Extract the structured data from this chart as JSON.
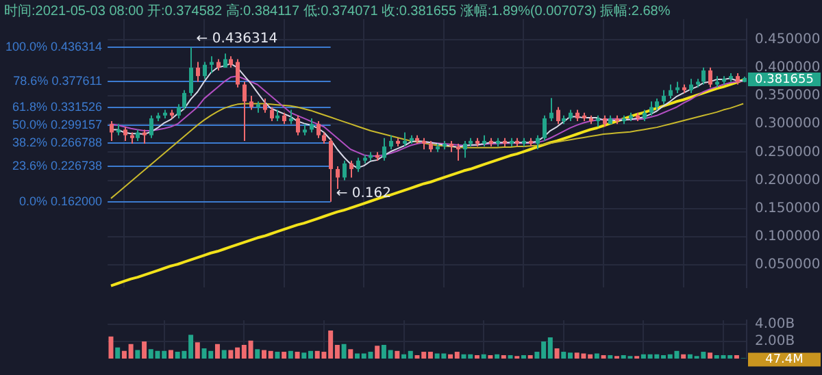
{
  "chart_data": [
    {
      "type": "candlestick",
      "title": "时间:2021-05-03 08:00 开:0.374582 高:0.384117 低:0.374071 收:0.381655 涨幅:1.89%(0.007073) 振幅:2.68%",
      "categories": [
        null,
        null,
        null,
        null,
        null,
        null,
        null,
        null,
        null,
        null,
        null,
        null,
        null,
        null,
        null,
        null,
        null,
        null,
        null,
        null,
        null,
        null,
        null,
        null,
        null,
        null,
        null,
        null,
        null,
        null,
        null,
        null,
        null,
        null,
        null,
        null,
        null,
        null,
        null,
        null,
        null,
        null,
        null,
        null,
        null,
        null,
        null,
        null,
        null,
        null,
        null,
        null,
        null,
        null,
        null,
        null,
        null,
        null,
        null,
        null,
        null,
        null,
        null,
        null,
        null,
        null,
        null,
        null,
        null,
        null,
        null,
        null,
        null,
        null,
        null,
        null,
        null,
        null,
        null,
        null,
        null,
        null,
        null,
        null,
        null,
        null,
        null,
        null,
        null,
        null,
        null,
        null,
        null,
        null,
        null,
        null
      ],
      "ohlc": [
        [
          0.3,
          0.305,
          0.27,
          0.285
        ],
        [
          0.285,
          0.3,
          0.28,
          0.29
        ],
        [
          0.29,
          0.295,
          0.27,
          0.28
        ],
        [
          0.28,
          0.285,
          0.265,
          0.275
        ],
        [
          0.275,
          0.29,
          0.27,
          0.285
        ],
        [
          0.285,
          0.29,
          0.265,
          0.28
        ],
        [
          0.28,
          0.315,
          0.275,
          0.31
        ],
        [
          0.31,
          0.32,
          0.305,
          0.315
        ],
        [
          0.315,
          0.325,
          0.31,
          0.32
        ],
        [
          0.32,
          0.325,
          0.31,
          0.315
        ],
        [
          0.315,
          0.335,
          0.31,
          0.33
        ],
        [
          0.33,
          0.36,
          0.325,
          0.355
        ],
        [
          0.355,
          0.436314,
          0.35,
          0.4
        ],
        [
          0.4,
          0.41,
          0.375,
          0.385
        ],
        [
          0.385,
          0.41,
          0.38,
          0.405
        ],
        [
          0.405,
          0.42,
          0.39,
          0.41
        ],
        [
          0.41,
          0.415,
          0.395,
          0.4
        ],
        [
          0.4,
          0.425,
          0.4,
          0.415
        ],
        [
          0.415,
          0.42,
          0.4,
          0.405
        ],
        [
          0.41,
          0.415,
          0.365,
          0.37
        ],
        [
          0.37,
          0.375,
          0.27,
          0.34
        ],
        [
          0.34,
          0.35,
          0.325,
          0.33
        ],
        [
          0.33,
          0.34,
          0.32,
          0.335
        ],
        [
          0.335,
          0.345,
          0.32,
          0.325
        ],
        [
          0.325,
          0.33,
          0.305,
          0.31
        ],
        [
          0.31,
          0.325,
          0.305,
          0.315
        ],
        [
          0.315,
          0.32,
          0.3,
          0.305
        ],
        [
          0.305,
          0.325,
          0.3,
          0.31
        ],
        [
          0.31,
          0.315,
          0.28,
          0.285
        ],
        [
          0.285,
          0.3,
          0.28,
          0.29
        ],
        [
          0.29,
          0.31,
          0.285,
          0.3
        ],
        [
          0.3,
          0.305,
          0.275,
          0.28
        ],
        [
          0.28,
          0.285,
          0.265,
          0.27
        ],
        [
          0.27,
          0.275,
          0.162,
          0.22
        ],
        [
          0.22,
          0.225,
          0.185,
          0.205
        ],
        [
          0.205,
          0.235,
          0.2,
          0.23
        ],
        [
          0.23,
          0.235,
          0.205,
          0.22
        ],
        [
          0.22,
          0.24,
          0.215,
          0.235
        ],
        [
          0.235,
          0.245,
          0.23,
          0.24
        ],
        [
          0.24,
          0.25,
          0.235,
          0.245
        ],
        [
          0.245,
          0.25,
          0.235,
          0.24
        ],
        [
          0.24,
          0.275,
          0.235,
          0.26
        ],
        [
          0.26,
          0.28,
          0.255,
          0.27
        ],
        [
          0.27,
          0.275,
          0.26,
          0.265
        ],
        [
          0.265,
          0.285,
          0.26,
          0.27
        ],
        [
          0.27,
          0.28,
          0.265,
          0.275
        ],
        [
          0.275,
          0.28,
          0.265,
          0.27
        ],
        [
          0.27,
          0.275,
          0.255,
          0.265
        ],
        [
          0.265,
          0.27,
          0.25,
          0.255
        ],
        [
          0.255,
          0.265,
          0.25,
          0.26
        ],
        [
          0.26,
          0.27,
          0.255,
          0.265
        ],
        [
          0.265,
          0.27,
          0.25,
          0.26
        ],
        [
          0.26,
          0.265,
          0.235,
          0.255
        ],
        [
          0.255,
          0.27,
          0.24,
          0.265
        ],
        [
          0.265,
          0.275,
          0.26,
          0.27
        ],
        [
          0.27,
          0.275,
          0.26,
          0.265
        ],
        [
          0.265,
          0.28,
          0.26,
          0.27
        ],
        [
          0.27,
          0.275,
          0.26,
          0.265
        ],
        [
          0.265,
          0.275,
          0.26,
          0.27
        ],
        [
          0.27,
          0.275,
          0.26,
          0.265
        ],
        [
          0.265,
          0.275,
          0.26,
          0.27
        ],
        [
          0.27,
          0.275,
          0.26,
          0.265
        ],
        [
          0.265,
          0.275,
          0.26,
          0.27
        ],
        [
          0.27,
          0.275,
          0.26,
          0.265
        ],
        [
          0.265,
          0.28,
          0.255,
          0.275
        ],
        [
          0.275,
          0.315,
          0.27,
          0.31
        ],
        [
          0.31,
          0.346,
          0.305,
          0.32
        ],
        [
          0.325,
          0.33,
          0.3,
          0.305
        ],
        [
          0.305,
          0.315,
          0.3,
          0.31
        ],
        [
          0.31,
          0.325,
          0.305,
          0.32
        ],
        [
          0.32,
          0.325,
          0.305,
          0.31
        ],
        [
          0.315,
          0.32,
          0.305,
          0.31
        ],
        [
          0.31,
          0.315,
          0.3,
          0.305
        ],
        [
          0.305,
          0.315,
          0.295,
          0.31
        ],
        [
          0.31,
          0.315,
          0.295,
          0.3
        ],
        [
          0.3,
          0.315,
          0.3,
          0.31
        ],
        [
          0.31,
          0.315,
          0.3,
          0.305
        ],
        [
          0.305,
          0.315,
          0.3,
          0.31
        ],
        [
          0.31,
          0.32,
          0.305,
          0.315
        ],
        [
          0.315,
          0.32,
          0.305,
          0.31
        ],
        [
          0.31,
          0.325,
          0.305,
          0.32
        ],
        [
          0.32,
          0.34,
          0.315,
          0.33
        ],
        [
          0.33,
          0.345,
          0.325,
          0.34
        ],
        [
          0.34,
          0.36,
          0.335,
          0.35
        ],
        [
          0.35,
          0.37,
          0.345,
          0.36
        ],
        [
          0.36,
          0.375,
          0.355,
          0.365
        ],
        [
          0.365,
          0.37,
          0.355,
          0.36
        ],
        [
          0.36,
          0.38,
          0.355,
          0.37
        ],
        [
          0.37,
          0.38,
          0.365,
          0.375
        ],
        [
          0.375,
          0.4,
          0.37,
          0.395
        ],
        [
          0.395,
          0.4,
          0.365,
          0.37
        ],
        [
          0.37,
          0.385,
          0.365,
          0.375
        ],
        [
          0.375,
          0.385,
          0.37,
          0.38
        ],
        [
          0.38,
          0.39,
          0.375,
          0.385
        ],
        [
          0.385,
          0.39,
          0.37,
          0.375
        ],
        [
          0.374582,
          0.384117,
          0.374071,
          0.381655
        ]
      ],
      "colors": [
        "#f06b6f",
        "#22a68b",
        "#f06b6f",
        "#f06b6f",
        "#22a68b",
        "#f06b6f",
        "#22a68b",
        "#22a68b",
        "#22a68b",
        "#f06b6f",
        "#22a68b",
        "#22a68b",
        "#22a68b",
        "#f06b6f",
        "#22a68b",
        "#22a68b",
        "#f06b6f",
        "#22a68b",
        "#f06b6f",
        "#f06b6f",
        "#f06b6f",
        "#f06b6f",
        "#22a68b",
        "#f06b6f",
        "#f06b6f",
        "#22a68b",
        "#f06b6f",
        "#22a68b",
        "#f06b6f",
        "#22a68b",
        "#22a68b",
        "#f06b6f",
        "#f06b6f",
        "#f06b6f",
        "#f06b6f",
        "#22a68b",
        "#f06b6f",
        "#22a68b",
        "#22a68b",
        "#22a68b",
        "#f06b6f",
        "#22a68b",
        "#22a68b",
        "#f06b6f",
        "#22a68b",
        "#22a68b",
        "#f06b6f",
        "#f06b6f",
        "#f06b6f",
        "#22a68b",
        "#22a68b",
        "#f06b6f",
        "#f06b6f",
        "#22a68b",
        "#22a68b",
        "#f06b6f",
        "#22a68b",
        "#f06b6f",
        "#22a68b",
        "#f06b6f",
        "#22a68b",
        "#f06b6f",
        "#22a68b",
        "#f06b6f",
        "#22a68b",
        "#22a68b",
        "#22a68b",
        "#f06b6f",
        "#22a68b",
        "#22a68b",
        "#f06b6f",
        "#f06b6f",
        "#f06b6f",
        "#22a68b",
        "#f06b6f",
        "#22a68b",
        "#f06b6f",
        "#22a68b",
        "#22a68b",
        "#f06b6f",
        "#22a68b",
        "#22a68b",
        "#22a68b",
        "#22a68b",
        "#22a68b",
        "#22a68b",
        "#f06b6f",
        "#22a68b",
        "#22a68b",
        "#22a68b",
        "#f06b6f",
        "#22a68b",
        "#22a68b",
        "#22a68b",
        "#f06b6f",
        "#22a68b"
      ],
      "series": [
        {
          "type": "line",
          "color": "#d8d8e6",
          "values": [
            0.29,
            0.29,
            0.285,
            0.283,
            0.283,
            0.282,
            0.286,
            0.293,
            0.302,
            0.308,
            0.318,
            0.327,
            0.344,
            0.357,
            0.375,
            0.391,
            0.4,
            0.403,
            0.407,
            0.4,
            0.386,
            0.372,
            0.356,
            0.34,
            0.328,
            0.323,
            0.318,
            0.313,
            0.305,
            0.301,
            0.298,
            0.293,
            0.285,
            0.272,
            0.255,
            0.241,
            0.229,
            0.222,
            0.226,
            0.234,
            0.236,
            0.244,
            0.251,
            0.256,
            0.261,
            0.268,
            0.27,
            0.269,
            0.267,
            0.265,
            0.263,
            0.261,
            0.259,
            0.261,
            0.263,
            0.263,
            0.265,
            0.267,
            0.267,
            0.267,
            0.267,
            0.267,
            0.267,
            0.267,
            0.269,
            0.277,
            0.288,
            0.295,
            0.304,
            0.313,
            0.313,
            0.311,
            0.311,
            0.311,
            0.307,
            0.307,
            0.306,
            0.307,
            0.308,
            0.31,
            0.312,
            0.317,
            0.323,
            0.332,
            0.34,
            0.349,
            0.355,
            0.361,
            0.366,
            0.373,
            0.375,
            0.379,
            0.379,
            0.381,
            0.377,
            0.377
          ]
        },
        {
          "type": "line",
          "color": "#b24fc2",
          "values": [
            0.3,
            0.298,
            0.295,
            0.292,
            0.29,
            0.288,
            0.288,
            0.29,
            0.292,
            0.295,
            0.3,
            0.31,
            0.32,
            0.33,
            0.345,
            0.355,
            0.365,
            0.375,
            0.383,
            0.385,
            0.38,
            0.375,
            0.37,
            0.36,
            0.35,
            0.34,
            0.33,
            0.32,
            0.315,
            0.31,
            0.305,
            0.3,
            0.295,
            0.285,
            0.275,
            0.265,
            0.255,
            0.25,
            0.245,
            0.243,
            0.243,
            0.245,
            0.248,
            0.252,
            0.257,
            0.262,
            0.265,
            0.267,
            0.267,
            0.266,
            0.265,
            0.264,
            0.263,
            0.262,
            0.262,
            0.263,
            0.264,
            0.265,
            0.265,
            0.266,
            0.266,
            0.266,
            0.266,
            0.266,
            0.267,
            0.27,
            0.275,
            0.281,
            0.287,
            0.293,
            0.298,
            0.302,
            0.305,
            0.307,
            0.308,
            0.309,
            0.309,
            0.308,
            0.308,
            0.308,
            0.309,
            0.312,
            0.315,
            0.32,
            0.325,
            0.33,
            0.337,
            0.343,
            0.35,
            0.357,
            0.362,
            0.366,
            0.37,
            0.373,
            0.375,
            0.376
          ]
        },
        {
          "type": "line",
          "color": "#c9b92c",
          "values": [
            0.168,
            0.178,
            0.188,
            0.198,
            0.208,
            0.218,
            0.228,
            0.238,
            0.248,
            0.258,
            0.268,
            0.278,
            0.288,
            0.298,
            0.307,
            0.315,
            0.322,
            0.328,
            0.332,
            0.335,
            0.336,
            0.336,
            0.336,
            0.336,
            0.335,
            0.334,
            0.333,
            0.332,
            0.33,
            0.327,
            0.324,
            0.32,
            0.316,
            0.312,
            0.308,
            0.304,
            0.3,
            0.296,
            0.292,
            0.288,
            0.285,
            0.282,
            0.279,
            0.276,
            0.273,
            0.27,
            0.268,
            0.266,
            0.264,
            0.262,
            0.261,
            0.26,
            0.259,
            0.258,
            0.258,
            0.258,
            0.258,
            0.258,
            0.258,
            0.259,
            0.259,
            0.26,
            0.26,
            0.261,
            0.262,
            0.264,
            0.266,
            0.268,
            0.27,
            0.272,
            0.274,
            0.276,
            0.278,
            0.28,
            0.282,
            0.283,
            0.284,
            0.285,
            0.286,
            0.288,
            0.29,
            0.292,
            0.294,
            0.297,
            0.3,
            0.303,
            0.306,
            0.309,
            0.312,
            0.315,
            0.318,
            0.321,
            0.325,
            0.328,
            0.332,
            0.336
          ]
        },
        {
          "type": "line",
          "color": "#f2e21a",
          "values": [
            0.013,
            0.017,
            0.021,
            0.025,
            0.028,
            0.032,
            0.036,
            0.04,
            0.044,
            0.048,
            0.051,
            0.055,
            0.059,
            0.063,
            0.067,
            0.071,
            0.074,
            0.078,
            0.082,
            0.086,
            0.09,
            0.094,
            0.098,
            0.101,
            0.105,
            0.109,
            0.113,
            0.117,
            0.121,
            0.124,
            0.128,
            0.132,
            0.136,
            0.14,
            0.144,
            0.147,
            0.151,
            0.155,
            0.159,
            0.163,
            0.167,
            0.171,
            0.174,
            0.178,
            0.182,
            0.186,
            0.19,
            0.194,
            0.197,
            0.201,
            0.205,
            0.209,
            0.213,
            0.217,
            0.22,
            0.224,
            0.228,
            0.232,
            0.236,
            0.24,
            0.244,
            0.247,
            0.251,
            0.255,
            0.259,
            0.263,
            0.267,
            0.27,
            0.274,
            0.278,
            0.282,
            0.286,
            0.29,
            0.293,
            0.297,
            0.301,
            0.305,
            0.309,
            0.313,
            0.317,
            0.32,
            0.324,
            0.328,
            0.332,
            0.336,
            0.34,
            0.343,
            0.347,
            0.351,
            0.355,
            0.359,
            0.363,
            0.366,
            0.37,
            0.374,
            0.378
          ]
        }
      ],
      "ylim": [
        0.01,
        0.486
      ],
      "yticks": [
        {
          "value": 0.05,
          "label": "0.050000"
        },
        {
          "value": 0.1,
          "label": "0.100000"
        },
        {
          "value": 0.15,
          "label": "0.150000"
        },
        {
          "value": 0.2,
          "label": "0.200000"
        },
        {
          "value": 0.25,
          "label": "0.250000"
        },
        {
          "value": 0.3,
          "label": "0.300000"
        },
        {
          "value": 0.35,
          "label": "0.350000"
        },
        {
          "value": 0.4,
          "label": "0.400000"
        },
        {
          "value": 0.45,
          "label": "0.450000"
        }
      ],
      "grid": true,
      "ref_lines": [
        {
          "axis": "y",
          "value": 0.436314,
          "label": "100.0% 0.436314",
          "color": "#3c7bd0"
        },
        {
          "axis": "y",
          "value": 0.377611,
          "label": "78.6% 0.377611",
          "color": "#3c7bd0"
        },
        {
          "axis": "y",
          "value": 0.331526,
          "label": "61.8% 0.331526",
          "color": "#3c7bd0"
        },
        {
          "axis": "y",
          "value": 0.299157,
          "label": "50.0% 0.299157",
          "color": "#3c7bd0"
        },
        {
          "axis": "y",
          "value": 0.266788,
          "label": "38.2% 0.266788",
          "color": "#3c7bd0"
        },
        {
          "axis": "y",
          "value": 0.226738,
          "label": "23.6% 0.226738",
          "color": "#3c7bd0"
        },
        {
          "axis": "y",
          "value": 0.162,
          "label": "0.0% 0.162000",
          "color": "#3c7bd0"
        }
      ],
      "annotations": [
        {
          "text": "← 0.436314",
          "y": 0.436314
        },
        {
          "text": "← 0.162",
          "y": 0.162
        },
        "0.381655"
      ]
    },
    {
      "type": "bar",
      "categories": [
        null,
        null,
        null,
        null,
        null,
        null,
        null,
        null,
        null,
        null,
        null,
        null,
        null,
        null,
        null,
        null,
        null,
        null,
        null,
        null,
        null,
        null,
        null,
        null,
        null,
        null,
        null,
        null,
        null,
        null,
        null,
        null,
        null,
        null,
        null,
        null,
        null,
        null,
        null,
        null,
        null,
        null,
        null,
        null,
        null,
        null,
        null,
        null,
        null,
        null,
        null,
        null,
        null,
        null,
        null,
        null,
        null,
        null,
        null,
        null,
        null,
        null,
        null,
        null,
        null,
        null,
        null,
        null,
        null,
        null,
        null,
        null,
        null,
        null,
        null,
        null,
        null,
        null,
        null,
        null,
        null,
        null,
        null,
        null,
        null,
        null,
        null,
        null,
        null,
        null,
        null,
        null,
        null,
        null,
        null,
        null
      ],
      "values": [
        2600000000,
        1300000000,
        900000000,
        1700000000,
        1000000000,
        2000000000,
        1100000000,
        900000000,
        900000000,
        1000000000,
        800000000,
        900000000,
        2800000000,
        1900000000,
        1200000000,
        900000000,
        1700000000,
        1000000000,
        1000000000,
        1300000000,
        1600000000,
        2100000000,
        1100000000,
        1000000000,
        900000000,
        800000000,
        800000000,
        900000000,
        800000000,
        700000000,
        900000000,
        900000000,
        800000000,
        3300000000,
        1600000000,
        1700000000,
        1100000000,
        600000000,
        600000000,
        800000000,
        1500000000,
        1600000000,
        1000000000,
        900000000,
        500000000,
        900000000,
        400000000,
        800000000,
        800000000,
        600000000,
        600000000,
        500000000,
        800000000,
        500000000,
        500000000,
        400000000,
        500000000,
        400000000,
        500000000,
        400000000,
        400000000,
        300000000,
        400000000,
        400000000,
        800000000,
        2000000000,
        2500000000,
        1200000000,
        800000000,
        700000000,
        700000000,
        600000000,
        500000000,
        600000000,
        400000000,
        400000000,
        300000000,
        400000000,
        300000000,
        300000000,
        500000000,
        500000000,
        500000000,
        400000000,
        500000000,
        900000000,
        500000000,
        500000000,
        300000000,
        800000000,
        700000000,
        400000000,
        400000000,
        400000000,
        400000000,
        47400000
      ],
      "colors": [
        "#f06b6f",
        "#22a68b",
        "#f06b6f",
        "#f06b6f",
        "#22a68b",
        "#f06b6f",
        "#22a68b",
        "#22a68b",
        "#22a68b",
        "#f06b6f",
        "#22a68b",
        "#22a68b",
        "#22a68b",
        "#f06b6f",
        "#22a68b",
        "#22a68b",
        "#f06b6f",
        "#22a68b",
        "#f06b6f",
        "#f06b6f",
        "#f06b6f",
        "#f06b6f",
        "#22a68b",
        "#f06b6f",
        "#f06b6f",
        "#22a68b",
        "#f06b6f",
        "#22a68b",
        "#f06b6f",
        "#22a68b",
        "#22a68b",
        "#f06b6f",
        "#f06b6f",
        "#f06b6f",
        "#f06b6f",
        "#22a68b",
        "#f06b6f",
        "#22a68b",
        "#22a68b",
        "#22a68b",
        "#f06b6f",
        "#22a68b",
        "#22a68b",
        "#f06b6f",
        "#22a68b",
        "#22a68b",
        "#f06b6f",
        "#f06b6f",
        "#f06b6f",
        "#22a68b",
        "#22a68b",
        "#f06b6f",
        "#f06b6f",
        "#22a68b",
        "#22a68b",
        "#f06b6f",
        "#22a68b",
        "#f06b6f",
        "#22a68b",
        "#f06b6f",
        "#22a68b",
        "#f06b6f",
        "#22a68b",
        "#f06b6f",
        "#22a68b",
        "#22a68b",
        "#22a68b",
        "#f06b6f",
        "#22a68b",
        "#22a68b",
        "#f06b6f",
        "#f06b6f",
        "#f06b6f",
        "#22a68b",
        "#f06b6f",
        "#22a68b",
        "#f06b6f",
        "#22a68b",
        "#22a68b",
        "#f06b6f",
        "#22a68b",
        "#22a68b",
        "#22a68b",
        "#22a68b",
        "#22a68b",
        "#22a68b",
        "#f06b6f",
        "#22a68b",
        "#22a68b",
        "#22a68b",
        "#f06b6f",
        "#22a68b",
        "#22a68b",
        "#22a68b",
        "#f06b6f",
        "#22a68b"
      ],
      "annotations": [
        "47.4M"
      ],
      "ylim": [
        0,
        4500000000
      ],
      "yticks": [
        {
          "value": 2000000000,
          "label": "2.00B"
        },
        {
          "value": 4000000000,
          "label": "4.00B"
        }
      ],
      "grid": true
    }
  ]
}
